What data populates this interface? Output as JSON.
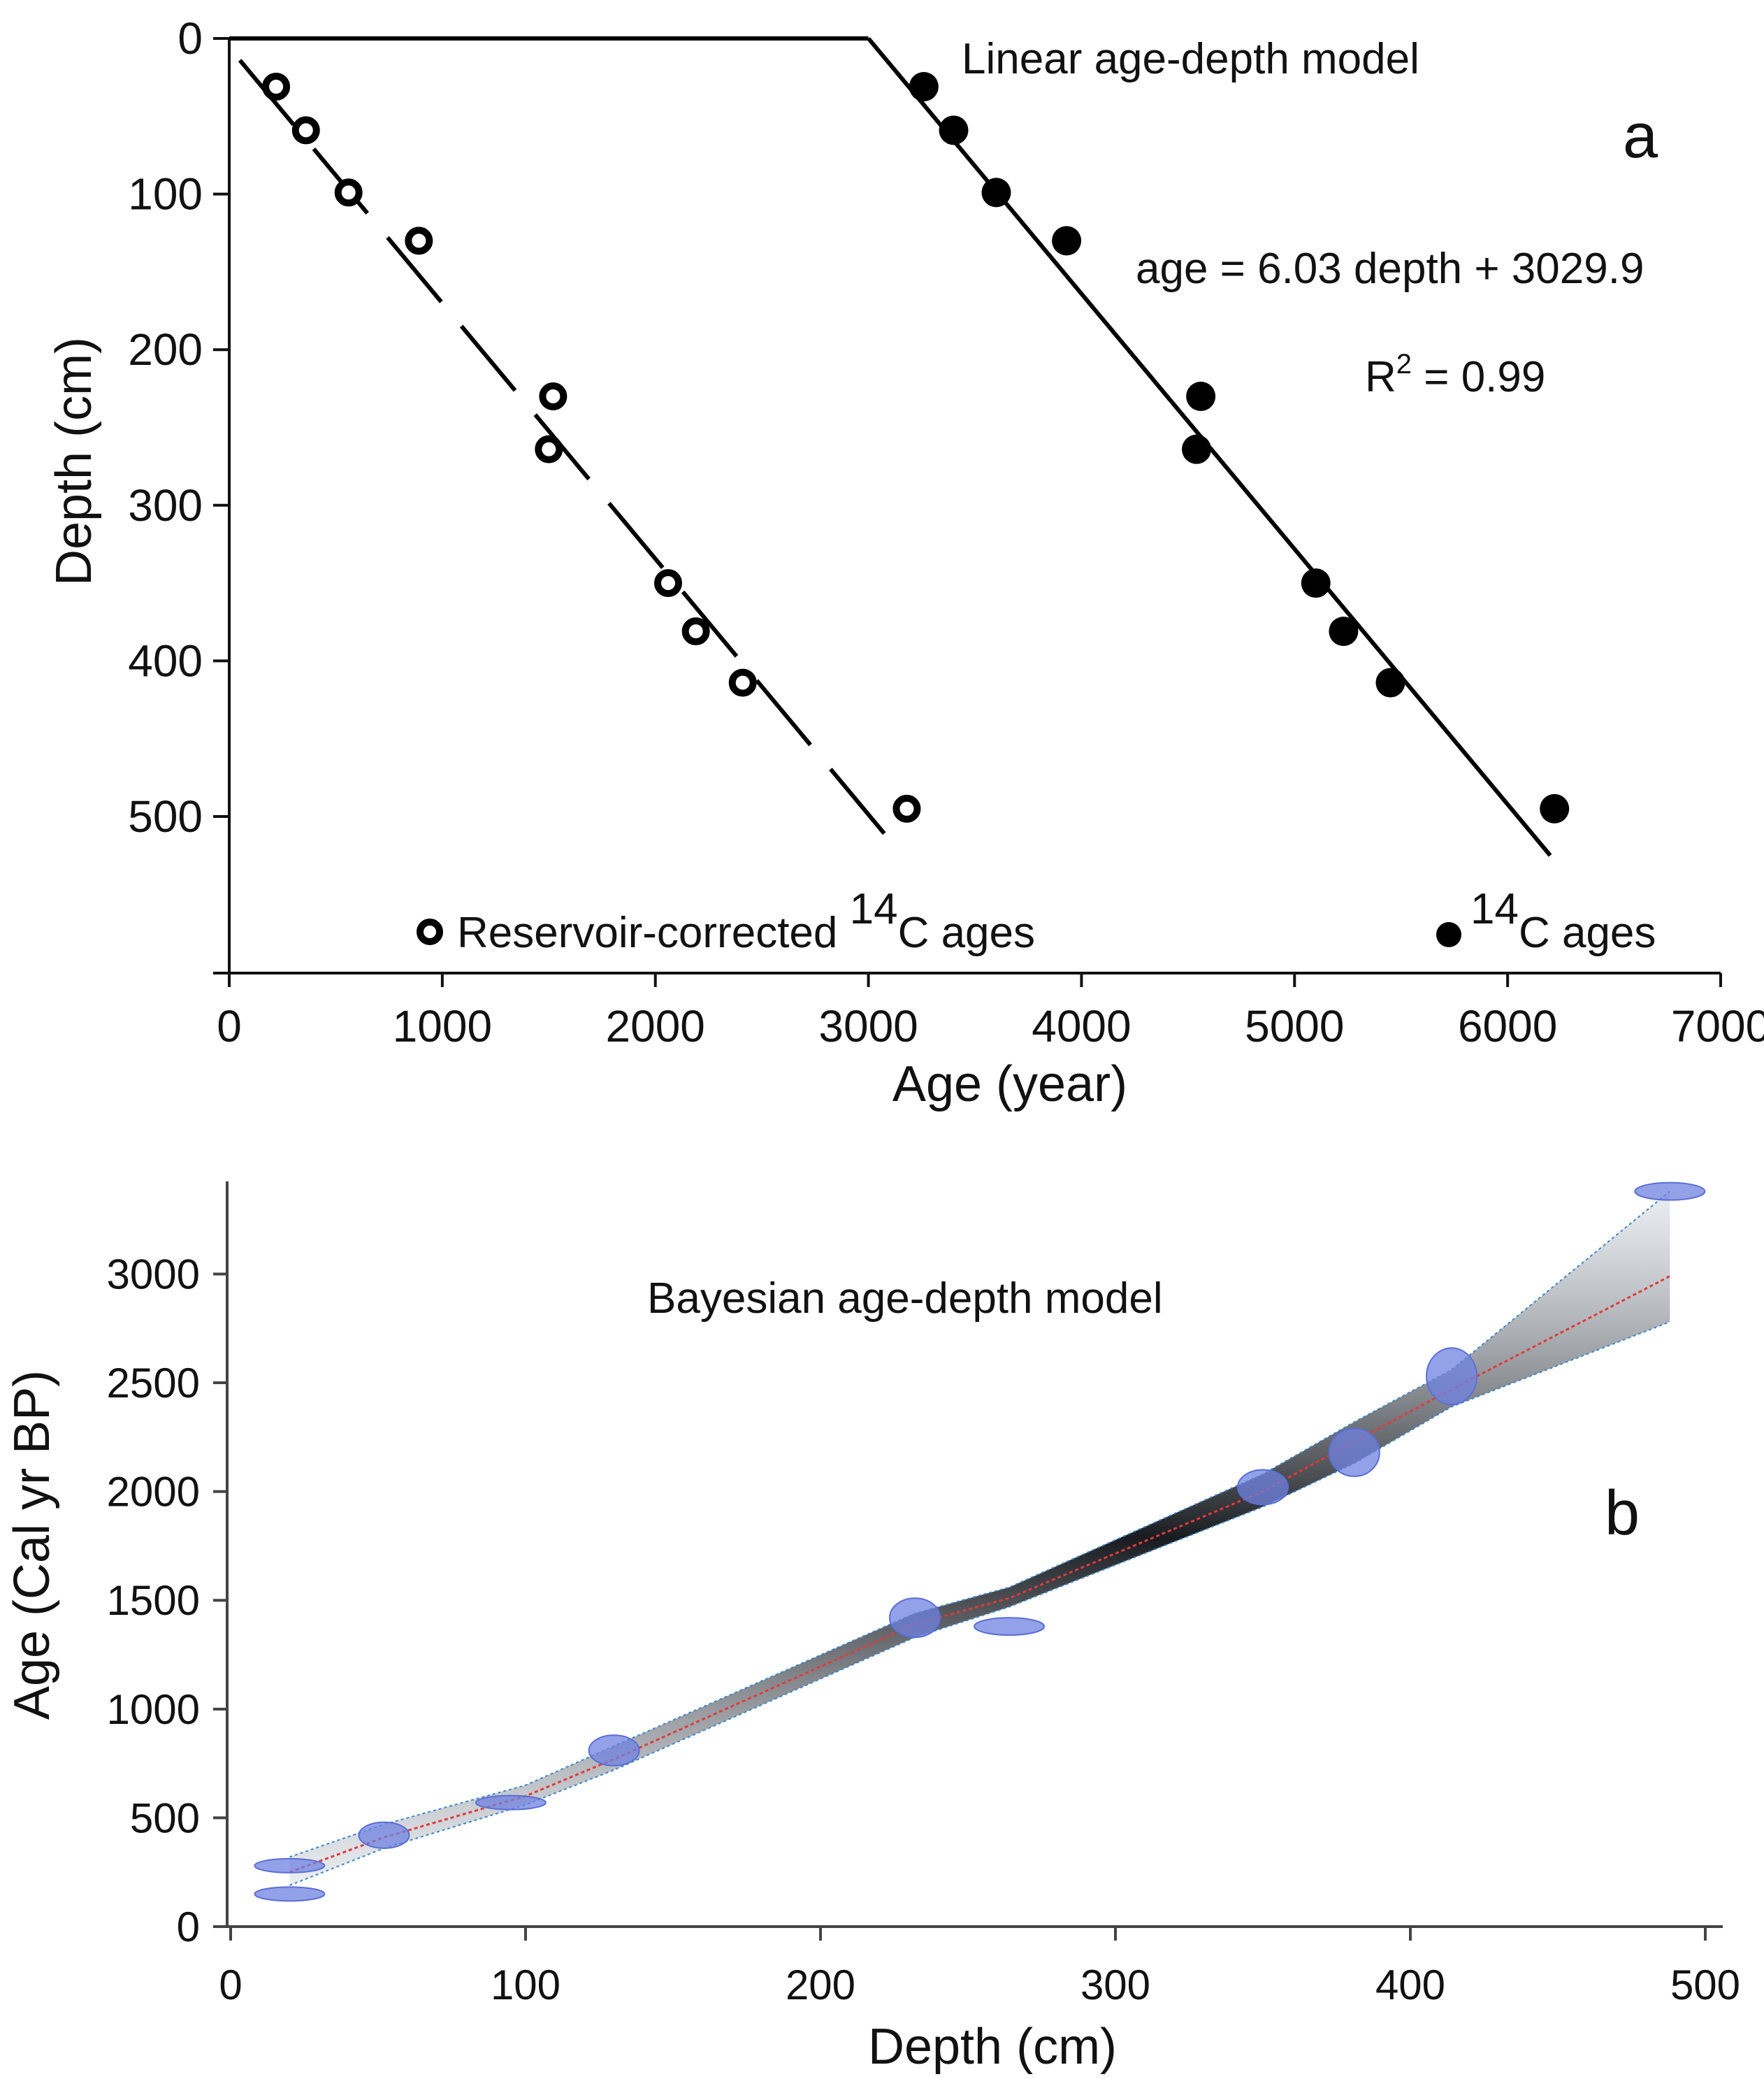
{
  "chart_data": [
    {
      "type": "scatter",
      "panel_label": "a",
      "title": "Linear age-depth model",
      "xlabel": "Age (year)",
      "ylabel": "Depth (cm)",
      "xlim": [
        0,
        7000
      ],
      "ylim": [
        0,
        600
      ],
      "y_inverted": true,
      "x_ticks": [
        {
          "value": 0,
          "label": "0"
        },
        {
          "value": 1000,
          "label": "1000"
        },
        {
          "value": 2000,
          "label": "2000"
        },
        {
          "value": 3000,
          "label": "3000"
        },
        {
          "value": 4000,
          "label": "4000"
        },
        {
          "value": 5000,
          "label": "5000"
        },
        {
          "value": 6000,
          "label": "6000"
        },
        {
          "value": 7000,
          "label": "7000"
        }
      ],
      "y_ticks": [
        {
          "value": 0,
          "label": "0"
        },
        {
          "value": 100,
          "label": "100"
        },
        {
          "value": 200,
          "label": "200"
        },
        {
          "value": 300,
          "label": "300"
        },
        {
          "value": 400,
          "label": "400"
        },
        {
          "value": 500,
          "label": "500"
        }
      ],
      "equation": "age = 6.03 depth + 3029.9",
      "r2": {
        "prefix": "R",
        "sup": "2",
        "text": " = 0.99"
      },
      "legend": {
        "corrected": {
          "pre": "Reservoir-corrected ",
          "sup": "14",
          "post": "C  ages"
        },
        "raw": {
          "sup": "14",
          "post": "C ages"
        }
      },
      "series": [
        {
          "name": "Reservoir-corrected 14C ages",
          "marker": "open-circle",
          "points": [
            {
              "age": 220,
              "depth": 31
            },
            {
              "age": 360,
              "depth": 59
            },
            {
              "age": 560,
              "depth": 99
            },
            {
              "age": 890,
              "depth": 130
            },
            {
              "age": 1520,
              "depth": 230
            },
            {
              "age": 1500,
              "depth": 264
            },
            {
              "age": 2060,
              "depth": 350
            },
            {
              "age": 2190,
              "depth": 381
            },
            {
              "age": 2410,
              "depth": 414
            },
            {
              "age": 3180,
              "depth": 495
            }
          ]
        },
        {
          "name": "14C ages",
          "marker": "filled-circle",
          "points": [
            {
              "age": 3260,
              "depth": 31
            },
            {
              "age": 3400,
              "depth": 59
            },
            {
              "age": 3600,
              "depth": 99
            },
            {
              "age": 3930,
              "depth": 130
            },
            {
              "age": 4560,
              "depth": 230
            },
            {
              "age": 4540,
              "depth": 264
            },
            {
              "age": 5100,
              "depth": 350
            },
            {
              "age": 5230,
              "depth": 381
            },
            {
              "age": 5450,
              "depth": 414
            },
            {
              "age": 6220,
              "depth": 495
            }
          ]
        }
      ],
      "fits": [
        {
          "name": "corrected fit",
          "style": "dashed",
          "from": {
            "age": 50,
            "depth": 14
          },
          "to": {
            "age": 3160,
            "depth": 525
          }
        },
        {
          "name": "raw fit",
          "style": "solid",
          "from": {
            "age": 3000,
            "depth": 0
          },
          "to": {
            "age": 6200,
            "depth": 525
          }
        },
        {
          "name": "surface line",
          "style": "solid",
          "from": {
            "age": 0,
            "depth": 0
          },
          "to": {
            "age": 3000,
            "depth": 0
          }
        }
      ]
    },
    {
      "type": "area",
      "panel_label": "b",
      "title": "Bayesian age-depth model",
      "xlabel": "Depth (cm)",
      "ylabel": "Age (Cal yr BP)",
      "xlim": [
        0,
        500
      ],
      "ylim": [
        0,
        3400
      ],
      "x_ticks": [
        {
          "value": 0,
          "label": "0"
        },
        {
          "value": 100,
          "label": "100"
        },
        {
          "value": 200,
          "label": "200"
        },
        {
          "value": 300,
          "label": "300"
        },
        {
          "value": 400,
          "label": "400"
        },
        {
          "value": 500,
          "label": "500"
        }
      ],
      "y_ticks": [
        {
          "value": 0,
          "label": "0"
        },
        {
          "value": 500,
          "label": "500"
        },
        {
          "value": 1000,
          "label": "1000"
        },
        {
          "value": 1500,
          "label": "1500"
        },
        {
          "value": 2000,
          "label": "2000"
        },
        {
          "value": 2500,
          "label": "2500"
        },
        {
          "value": 3000,
          "label": "3000"
        }
      ],
      "median": [
        {
          "depth": 20,
          "age": 250
        },
        {
          "depth": 52,
          "age": 410
        },
        {
          "depth": 100,
          "age": 600
        },
        {
          "depth": 130,
          "age": 770
        },
        {
          "depth": 232,
          "age": 1390
        },
        {
          "depth": 264,
          "age": 1510
        },
        {
          "depth": 350,
          "age": 2000
        },
        {
          "depth": 381,
          "age": 2230
        },
        {
          "depth": 414,
          "age": 2470
        },
        {
          "depth": 488,
          "age": 2990
        }
      ],
      "ci_lower": [
        {
          "depth": 20,
          "age": 190
        },
        {
          "depth": 52,
          "age": 360
        },
        {
          "depth": 100,
          "age": 560
        },
        {
          "depth": 130,
          "age": 720
        },
        {
          "depth": 232,
          "age": 1330
        },
        {
          "depth": 264,
          "age": 1470
        },
        {
          "depth": 350,
          "age": 1930
        },
        {
          "depth": 381,
          "age": 2130
        },
        {
          "depth": 414,
          "age": 2390
        },
        {
          "depth": 488,
          "age": 2780
        }
      ],
      "ci_upper": [
        {
          "depth": 20,
          "age": 320
        },
        {
          "depth": 52,
          "age": 470
        },
        {
          "depth": 100,
          "age": 650
        },
        {
          "depth": 130,
          "age": 830
        },
        {
          "depth": 232,
          "age": 1440
        },
        {
          "depth": 264,
          "age": 1560
        },
        {
          "depth": 350,
          "age": 2080
        },
        {
          "depth": 381,
          "age": 2320
        },
        {
          "depth": 414,
          "age": 2560
        },
        {
          "depth": 488,
          "age": 3380
        }
      ],
      "calibrated_dates": [
        {
          "depth": 20,
          "age": 280,
          "spread": 30
        },
        {
          "depth": 20,
          "age": 150,
          "spread": 25
        },
        {
          "depth": 52,
          "age": 420,
          "spread": 60
        },
        {
          "depth": 95,
          "age": 570,
          "spread": 25
        },
        {
          "depth": 130,
          "age": 810,
          "spread": 70
        },
        {
          "depth": 232,
          "age": 1420,
          "spread": 90
        },
        {
          "depth": 264,
          "age": 1380,
          "spread": 40
        },
        {
          "depth": 350,
          "age": 2020,
          "spread": 80
        },
        {
          "depth": 381,
          "age": 2180,
          "spread": 110
        },
        {
          "depth": 414,
          "age": 2530,
          "spread": 130
        },
        {
          "depth": 488,
          "age": 3380,
          "spread": 40
        }
      ]
    }
  ]
}
